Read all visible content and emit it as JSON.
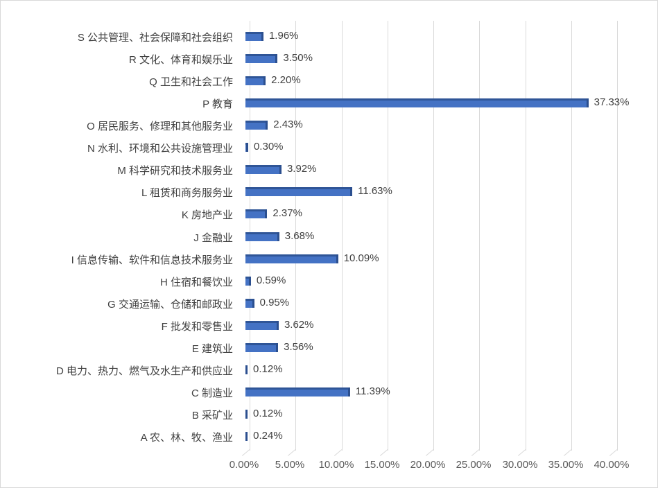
{
  "chart_data": {
    "type": "bar",
    "orientation": "horizontal",
    "style": "3d-clustered-bar",
    "title": "",
    "xlabel": "",
    "ylabel": "",
    "xlim": [
      0,
      40
    ],
    "x_tick_labels": [
      "0.00%",
      "5.00%",
      "10.00%",
      "15.00%",
      "20.00%",
      "25.00%",
      "30.00%",
      "35.00%",
      "40.00%"
    ],
    "grid": true,
    "legend": null,
    "bar_color": "#4472C4",
    "categories": [
      "S 公共管理、社会保障和社会组织",
      "R 文化、体育和娱乐业",
      "Q 卫生和社会工作",
      "P 教育",
      "O 居民服务、修理和其他服务业",
      "N 水利、环境和公共设施管理业",
      "M 科学研究和技术服务业",
      "L 租赁和商务服务业",
      "K 房地产业",
      "J 金融业",
      "I 信息传输、软件和信息技术服务业",
      "H 住宿和餐饮业",
      "G 交通运输、仓储和邮政业",
      "F 批发和零售业",
      "E 建筑业",
      "D 电力、热力、燃气及水生产和供应业",
      "C 制造业",
      "B 采矿业",
      "A 农、林、牧、渔业"
    ],
    "values": [
      1.96,
      3.5,
      2.2,
      37.33,
      2.43,
      0.3,
      3.92,
      11.63,
      2.37,
      3.68,
      10.09,
      0.59,
      0.95,
      3.62,
      3.56,
      0.12,
      11.39,
      0.12,
      0.24
    ],
    "value_labels": [
      "1.96%",
      "3.50%",
      "2.20%",
      "37.33%",
      "2.43%",
      "0.30%",
      "3.92%",
      "11.63%",
      "2.37%",
      "3.68%",
      "10.09%",
      "0.59%",
      "0.95%",
      "3.62%",
      "3.56%",
      "0.12%",
      "11.39%",
      "0.12%",
      "0.24%"
    ]
  }
}
